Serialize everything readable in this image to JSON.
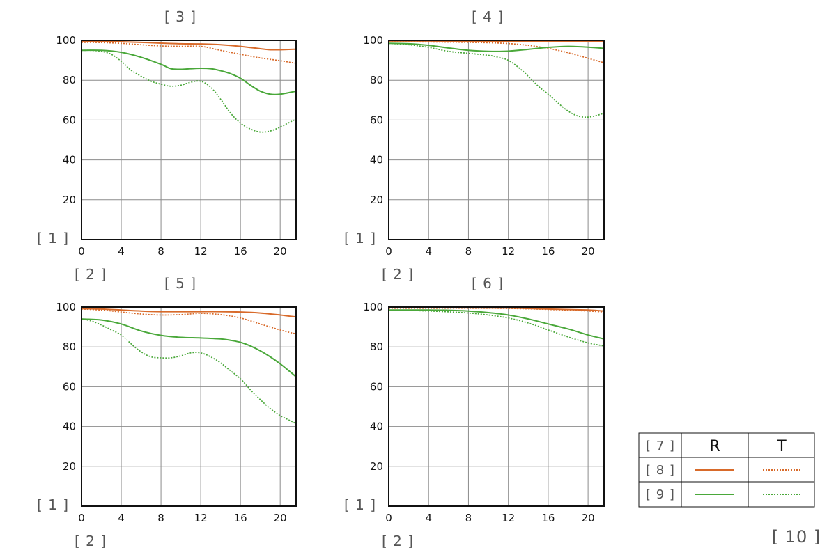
{
  "colors": {
    "orange": "#d86a2a",
    "green": "#4aa83a",
    "grid": "#8c8c8c",
    "axis": "#111111"
  },
  "chart_data": [
    {
      "type": "line",
      "title": "[ 3 ]",
      "ylabel": "[ 1 ]",
      "xlabel": "[ 2 ]",
      "xlim": [
        0,
        21.6
      ],
      "ylim": [
        0,
        100
      ],
      "xticks": [
        "0",
        "4",
        "8",
        "12",
        "16",
        "20"
      ],
      "yticks": [
        "20",
        "40",
        "60",
        "80",
        "100"
      ],
      "series": [
        {
          "row": "[ 8 ]",
          "dir": "R",
          "color": "orange",
          "dashed": false,
          "x": [
            0,
            2,
            4,
            6,
            8,
            10,
            12,
            14,
            16,
            18,
            19,
            20,
            21.6
          ],
          "y": [
            99.5,
            99.5,
            99.3,
            99,
            98.6,
            98.3,
            98.2,
            97.8,
            97,
            95.8,
            95.3,
            95.3,
            95.6
          ]
        },
        {
          "row": "[ 8 ]",
          "dir": "T",
          "color": "orange",
          "dashed": true,
          "x": [
            0,
            2,
            4,
            6,
            8,
            10,
            12,
            14,
            16,
            18,
            20,
            21.6
          ],
          "y": [
            99,
            98.9,
            98.5,
            97.8,
            97.2,
            97,
            97,
            95,
            93,
            91.2,
            89.8,
            88.5
          ]
        },
        {
          "row": "[ 9 ]",
          "dir": "R",
          "color": "green",
          "dashed": false,
          "x": [
            0,
            2,
            4,
            6,
            8,
            9,
            10,
            11,
            12,
            13,
            14,
            15,
            16,
            17,
            18,
            19,
            20,
            21.6
          ],
          "y": [
            95,
            95,
            94,
            91.5,
            88,
            85.8,
            85.5,
            85.8,
            86,
            85.8,
            84.8,
            83.3,
            81,
            77.5,
            74.5,
            73,
            73,
            74.5
          ]
        },
        {
          "row": "[ 9 ]",
          "dir": "T",
          "color": "green",
          "dashed": true,
          "x": [
            0,
            1,
            2,
            3,
            4,
            5,
            6,
            7,
            8,
            9,
            10,
            11,
            12,
            13,
            14,
            15,
            16,
            17,
            18,
            19,
            20,
            21,
            21.6
          ],
          "y": [
            95,
            95,
            94.5,
            93,
            89.5,
            85,
            82,
            79.5,
            78,
            77,
            77.5,
            79,
            79.5,
            76.5,
            70.5,
            63.5,
            58.5,
            55.5,
            54,
            54.5,
            56.5,
            59,
            60.5
          ]
        }
      ]
    },
    {
      "type": "line",
      "title": "[ 4 ]",
      "ylabel": "[ 1 ]",
      "xlabel": "[ 2 ]",
      "xlim": [
        0,
        21.6
      ],
      "ylim": [
        0,
        100
      ],
      "xticks": [
        "0",
        "4",
        "8",
        "12",
        "16",
        "20"
      ],
      "yticks": [
        "20",
        "40",
        "60",
        "80",
        "100"
      ],
      "series": [
        {
          "row": "[ 8 ]",
          "dir": "R",
          "color": "orange",
          "dashed": false,
          "x": [
            0,
            4,
            8,
            12,
            16,
            20,
            21.6
          ],
          "y": [
            99.7,
            99.7,
            99.6,
            99.6,
            99.6,
            99.6,
            99.6
          ]
        },
        {
          "row": "[ 8 ]",
          "dir": "T",
          "color": "orange",
          "dashed": true,
          "x": [
            0,
            4,
            8,
            10,
            12,
            14,
            16,
            18,
            20,
            21.6
          ],
          "y": [
            99.3,
            99.2,
            99,
            98.8,
            98.4,
            97.5,
            96,
            93.8,
            91,
            88.8
          ]
        },
        {
          "row": "[ 9 ]",
          "dir": "R",
          "color": "green",
          "dashed": false,
          "x": [
            0,
            2,
            4,
            6,
            8,
            10,
            12,
            14,
            16,
            18,
            20,
            21.6
          ],
          "y": [
            98.5,
            98.3,
            97.5,
            96.2,
            95,
            94.5,
            94.6,
            95.5,
            96.5,
            97,
            96.6,
            96
          ]
        },
        {
          "row": "[ 9 ]",
          "dir": "T",
          "color": "green",
          "dashed": true,
          "x": [
            0,
            2,
            4,
            6,
            8,
            10,
            11,
            12,
            13,
            14,
            15,
            16,
            17,
            18,
            19,
            20,
            21,
            21.6
          ],
          "y": [
            98.5,
            97.8,
            96.5,
            94.5,
            93.5,
            92.5,
            91.5,
            90,
            86.5,
            82,
            77,
            73,
            68.5,
            64.5,
            62,
            61.5,
            62.5,
            63.5
          ]
        }
      ]
    },
    {
      "type": "line",
      "title": "[ 5 ]",
      "ylabel": "[ 1 ]",
      "xlabel": "[ 2 ]",
      "xlim": [
        0,
        21.6
      ],
      "ylim": [
        0,
        100
      ],
      "xticks": [
        "0",
        "4",
        "8",
        "12",
        "16",
        "20"
      ],
      "yticks": [
        "20",
        "40",
        "60",
        "80",
        "100"
      ],
      "series": [
        {
          "row": "[ 8 ]",
          "dir": "R",
          "color": "orange",
          "dashed": false,
          "x": [
            0,
            2,
            4,
            6,
            8,
            10,
            12,
            14,
            16,
            18,
            20,
            21.6
          ],
          "y": [
            99.2,
            99,
            98.5,
            98,
            97.7,
            97.7,
            97.7,
            97.7,
            97.5,
            97,
            96,
            95
          ]
        },
        {
          "row": "[ 8 ]",
          "dir": "T",
          "color": "orange",
          "dashed": true,
          "x": [
            0,
            2,
            4,
            6,
            8,
            10,
            12,
            14,
            16,
            18,
            20,
            21.6
          ],
          "y": [
            99,
            98.5,
            97.5,
            96.5,
            96,
            96.2,
            96.8,
            96.2,
            94.5,
            91.5,
            88.5,
            86.5
          ]
        },
        {
          "row": "[ 9 ]",
          "dir": "R",
          "color": "green",
          "dashed": false,
          "x": [
            0,
            2,
            4,
            6,
            8,
            10,
            12,
            14,
            15,
            16,
            17,
            18,
            19,
            20,
            21,
            21.6
          ],
          "y": [
            94,
            93.5,
            91.5,
            88,
            85.8,
            84.8,
            84.5,
            84,
            83.3,
            82.3,
            80.5,
            78,
            75,
            71.5,
            67.5,
            65
          ]
        },
        {
          "row": "[ 9 ]",
          "dir": "T",
          "color": "green",
          "dashed": true,
          "x": [
            0,
            1,
            2,
            3,
            4,
            5,
            6,
            7,
            8,
            9,
            10,
            11,
            12,
            13,
            14,
            15,
            16,
            17,
            18,
            19,
            20,
            21,
            21.6
          ],
          "y": [
            94,
            93,
            91,
            88.5,
            86,
            81.5,
            77.5,
            75,
            74.5,
            74.5,
            75.5,
            77,
            77,
            75,
            72,
            68,
            64,
            58.5,
            53.5,
            49,
            45.5,
            43,
            41.5
          ]
        }
      ]
    },
    {
      "type": "line",
      "title": "[ 6 ]",
      "ylabel": "[ 1 ]",
      "xlabel": "[ 2 ]",
      "xlim": [
        0,
        21.6
      ],
      "ylim": [
        0,
        100
      ],
      "xticks": [
        "0",
        "4",
        "8",
        "12",
        "16",
        "20"
      ],
      "yticks": [
        "20",
        "40",
        "60",
        "80",
        "100"
      ],
      "series": [
        {
          "row": "[ 8 ]",
          "dir": "R",
          "color": "orange",
          "dashed": false,
          "x": [
            0,
            4,
            8,
            12,
            16,
            20,
            21.6
          ],
          "y": [
            99.7,
            99.7,
            99.6,
            99.5,
            99,
            98.5,
            98
          ]
        },
        {
          "row": "[ 8 ]",
          "dir": "T",
          "color": "orange",
          "dashed": true,
          "x": [
            0,
            4,
            8,
            12,
            16,
            20,
            21.6
          ],
          "y": [
            99.4,
            99.4,
            99.4,
            99.3,
            98.8,
            98,
            97.5
          ]
        },
        {
          "row": "[ 9 ]",
          "dir": "R",
          "color": "green",
          "dashed": false,
          "x": [
            0,
            2,
            4,
            6,
            8,
            10,
            12,
            14,
            16,
            18,
            20,
            21.6
          ],
          "y": [
            98.5,
            98.5,
            98.5,
            98.4,
            98,
            97.2,
            96,
            94,
            91.5,
            89,
            86,
            84
          ]
        },
        {
          "row": "[ 9 ]",
          "dir": "T",
          "color": "green",
          "dashed": true,
          "x": [
            0,
            2,
            4,
            6,
            8,
            10,
            12,
            14,
            16,
            18,
            20,
            21.6
          ],
          "y": [
            98.4,
            98.3,
            98,
            97.6,
            97,
            96,
            94.5,
            92,
            88.5,
            85,
            82,
            80.5
          ]
        }
      ]
    }
  ],
  "legend": {
    "corner_label": "[ 7 ]",
    "col_r": "R",
    "col_t": "T",
    "row_8": "[ 8 ]",
    "row_9": "[ 9 ]"
  },
  "footer_label": "[ 10 ]"
}
